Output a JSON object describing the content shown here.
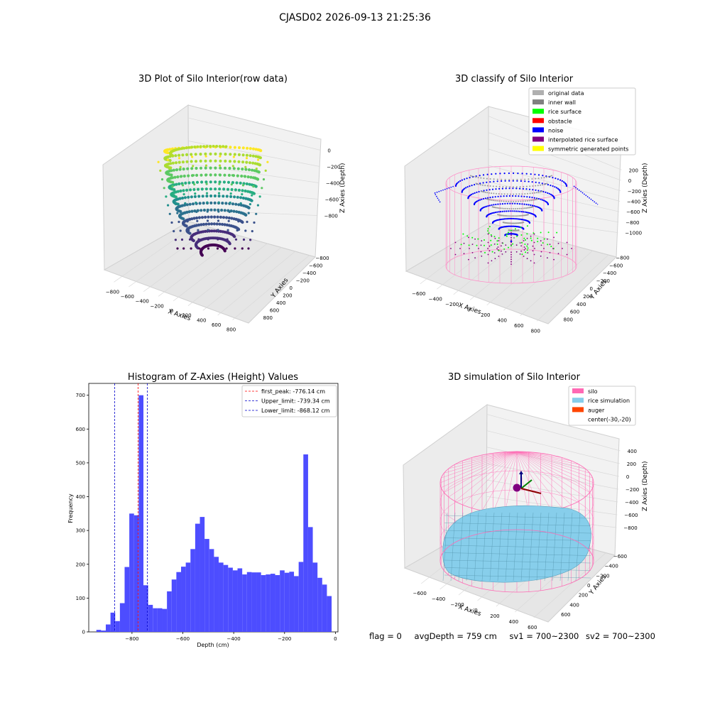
{
  "suptitle": "CJASD02 2026-09-13 21:25:36",
  "footer": {
    "flag": "flag = 0",
    "avg": "avgDepth = 759 cm",
    "sv1": "sv1 = 700~2300",
    "sv2": "sv2 = 700~2300"
  },
  "colors": {
    "hist_bar": "#4d4dff",
    "first_peak": "#ff0000",
    "limits": "#0000cc",
    "silo": "#ff69b4",
    "rice": "#87ceeb",
    "auger": "#ff4500"
  },
  "chart_data": [
    {
      "type": "scatter3d",
      "title": "3D Plot of Silo Interior(row data)",
      "xlabel": "X Axies",
      "ylabel": "Y Axies",
      "zlabel": "Z Axies (Depth)",
      "x_ticks": [
        "−800",
        "−600",
        "−400",
        "−200",
        "0",
        "200",
        "400",
        "600",
        "800"
      ],
      "y_ticks": [
        "−800",
        "−600",
        "−400",
        "−200",
        "0",
        "200",
        "400",
        "600",
        "800"
      ],
      "z_ticks": [
        "0",
        "−200",
        "−400",
        "−600",
        "−800"
      ],
      "colormap": "viridis"
    },
    {
      "type": "scatter3d",
      "title": "3D classify of Silo Interior",
      "xlabel": "X Axies",
      "ylabel": "Y Axies",
      "zlabel": "Z Axies (Depth)",
      "x_ticks": [
        "−600",
        "−400",
        "−200",
        "0",
        "200",
        "400",
        "600",
        "800"
      ],
      "y_ticks": [
        "−800",
        "−600",
        "−400",
        "−200",
        "0",
        "200",
        "400",
        "600",
        "800"
      ],
      "z_ticks": [
        "200",
        "0",
        "−200",
        "−400",
        "−600",
        "−800",
        "−1000"
      ],
      "legend": [
        {
          "label": "original data",
          "color": "#b0b0b0"
        },
        {
          "label": "inner wall",
          "color": "#808080"
        },
        {
          "label": "rice surface",
          "color": "#00ff00"
        },
        {
          "label": "obstacle",
          "color": "#ff0000"
        },
        {
          "label": "noise",
          "color": "#0000ff"
        },
        {
          "label": "interpolated rice surface",
          "color": "#800080"
        },
        {
          "label": "symmetric generated points",
          "color": "#ffff00"
        }
      ],
      "legend_position": "upper right"
    },
    {
      "type": "bar",
      "title": "Histogram of Z-Axies (Height) Values",
      "xlabel": "Depth (cm)",
      "ylabel": "Frequency",
      "xlim": [
        -970,
        10
      ],
      "ylim": [
        0,
        735
      ],
      "x_ticks": [
        -800,
        -600,
        -400,
        -200,
        0
      ],
      "y_ticks": [
        0,
        100,
        200,
        300,
        400,
        500,
        600,
        700
      ],
      "bin_width": 18.5,
      "bin_start": -940,
      "values": [
        6,
        4,
        22,
        57,
        32,
        85,
        192,
        350,
        345,
        700,
        138,
        80,
        70,
        70,
        68,
        120,
        155,
        177,
        193,
        205,
        245,
        320,
        340,
        275,
        245,
        222,
        205,
        198,
        190,
        182,
        188,
        170,
        177,
        176,
        176,
        168,
        170,
        172,
        168,
        182,
        175,
        178,
        165,
        207,
        525,
        310,
        205,
        160,
        140,
        106
      ],
      "vlines": [
        {
          "label": "first_peak: -776.14 cm",
          "x": -776.14,
          "color": "#ff0000"
        },
        {
          "label": "Upper_limit: -739.34 cm",
          "x": -739.34,
          "color": "#0000cc"
        },
        {
          "label": "Lower_limit: -868.12 cm",
          "x": -868.12,
          "color": "#0000cc"
        }
      ],
      "legend_position": "upper right"
    },
    {
      "type": "surface3d",
      "title": "3D simulation of Silo Interior",
      "xlabel": "X Axies",
      "ylabel": "Y Axies",
      "zlabel": "Z Axies (Depth)",
      "x_ticks": [
        "−600",
        "−400",
        "−200",
        "0",
        "200",
        "400",
        "600"
      ],
      "y_ticks": [
        "−600",
        "−400",
        "−200",
        "0",
        "200",
        "400",
        "600"
      ],
      "z_ticks": [
        "400",
        "200",
        "0",
        "−200",
        "−400",
        "−600",
        "−800"
      ],
      "legend": [
        {
          "label": "silo",
          "color": "#ff69b4"
        },
        {
          "label": "rice simulation",
          "color": "#87ceeb"
        },
        {
          "label": "auger",
          "color": "#ff4500"
        },
        {
          "label": "center(-30,-20)",
          "color": ""
        }
      ],
      "legend_position": "upper right"
    }
  ]
}
